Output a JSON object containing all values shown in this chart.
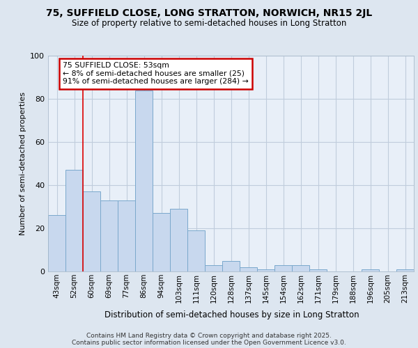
{
  "title1": "75, SUFFIELD CLOSE, LONG STRATTON, NORWICH, NR15 2JL",
  "title2": "Size of property relative to semi-detached houses in Long Stratton",
  "xlabel": "Distribution of semi-detached houses by size in Long Stratton",
  "ylabel": "Number of semi-detached properties",
  "categories": [
    "43sqm",
    "52sqm",
    "60sqm",
    "69sqm",
    "77sqm",
    "86sqm",
    "94sqm",
    "103sqm",
    "111sqm",
    "120sqm",
    "128sqm",
    "137sqm",
    "145sqm",
    "154sqm",
    "162sqm",
    "171sqm",
    "179sqm",
    "188sqm",
    "196sqm",
    "205sqm",
    "213sqm"
  ],
  "values": [
    26,
    47,
    37,
    33,
    33,
    84,
    27,
    29,
    19,
    3,
    5,
    2,
    1,
    3,
    3,
    1,
    0,
    0,
    1,
    0,
    1
  ],
  "bar_color": "#c8d8ee",
  "bar_edge_color": "#7aa8cc",
  "vline_color": "#dd0000",
  "vline_x": 1.5,
  "annotation_text": "75 SUFFIELD CLOSE: 53sqm\n← 8% of semi-detached houses are smaller (25)\n91% of semi-detached houses are larger (284) →",
  "annotation_box_facecolor": "#ffffff",
  "annotation_box_edgecolor": "#cc0000",
  "grid_color": "#c0ccdc",
  "background_color": "#dde6f0",
  "plot_bg_color": "#e8eff8",
  "footer": "Contains HM Land Registry data © Crown copyright and database right 2025.\nContains public sector information licensed under the Open Government Licence v3.0.",
  "ylim": [
    0,
    100
  ],
  "yticks": [
    0,
    20,
    40,
    60,
    80,
    100
  ]
}
